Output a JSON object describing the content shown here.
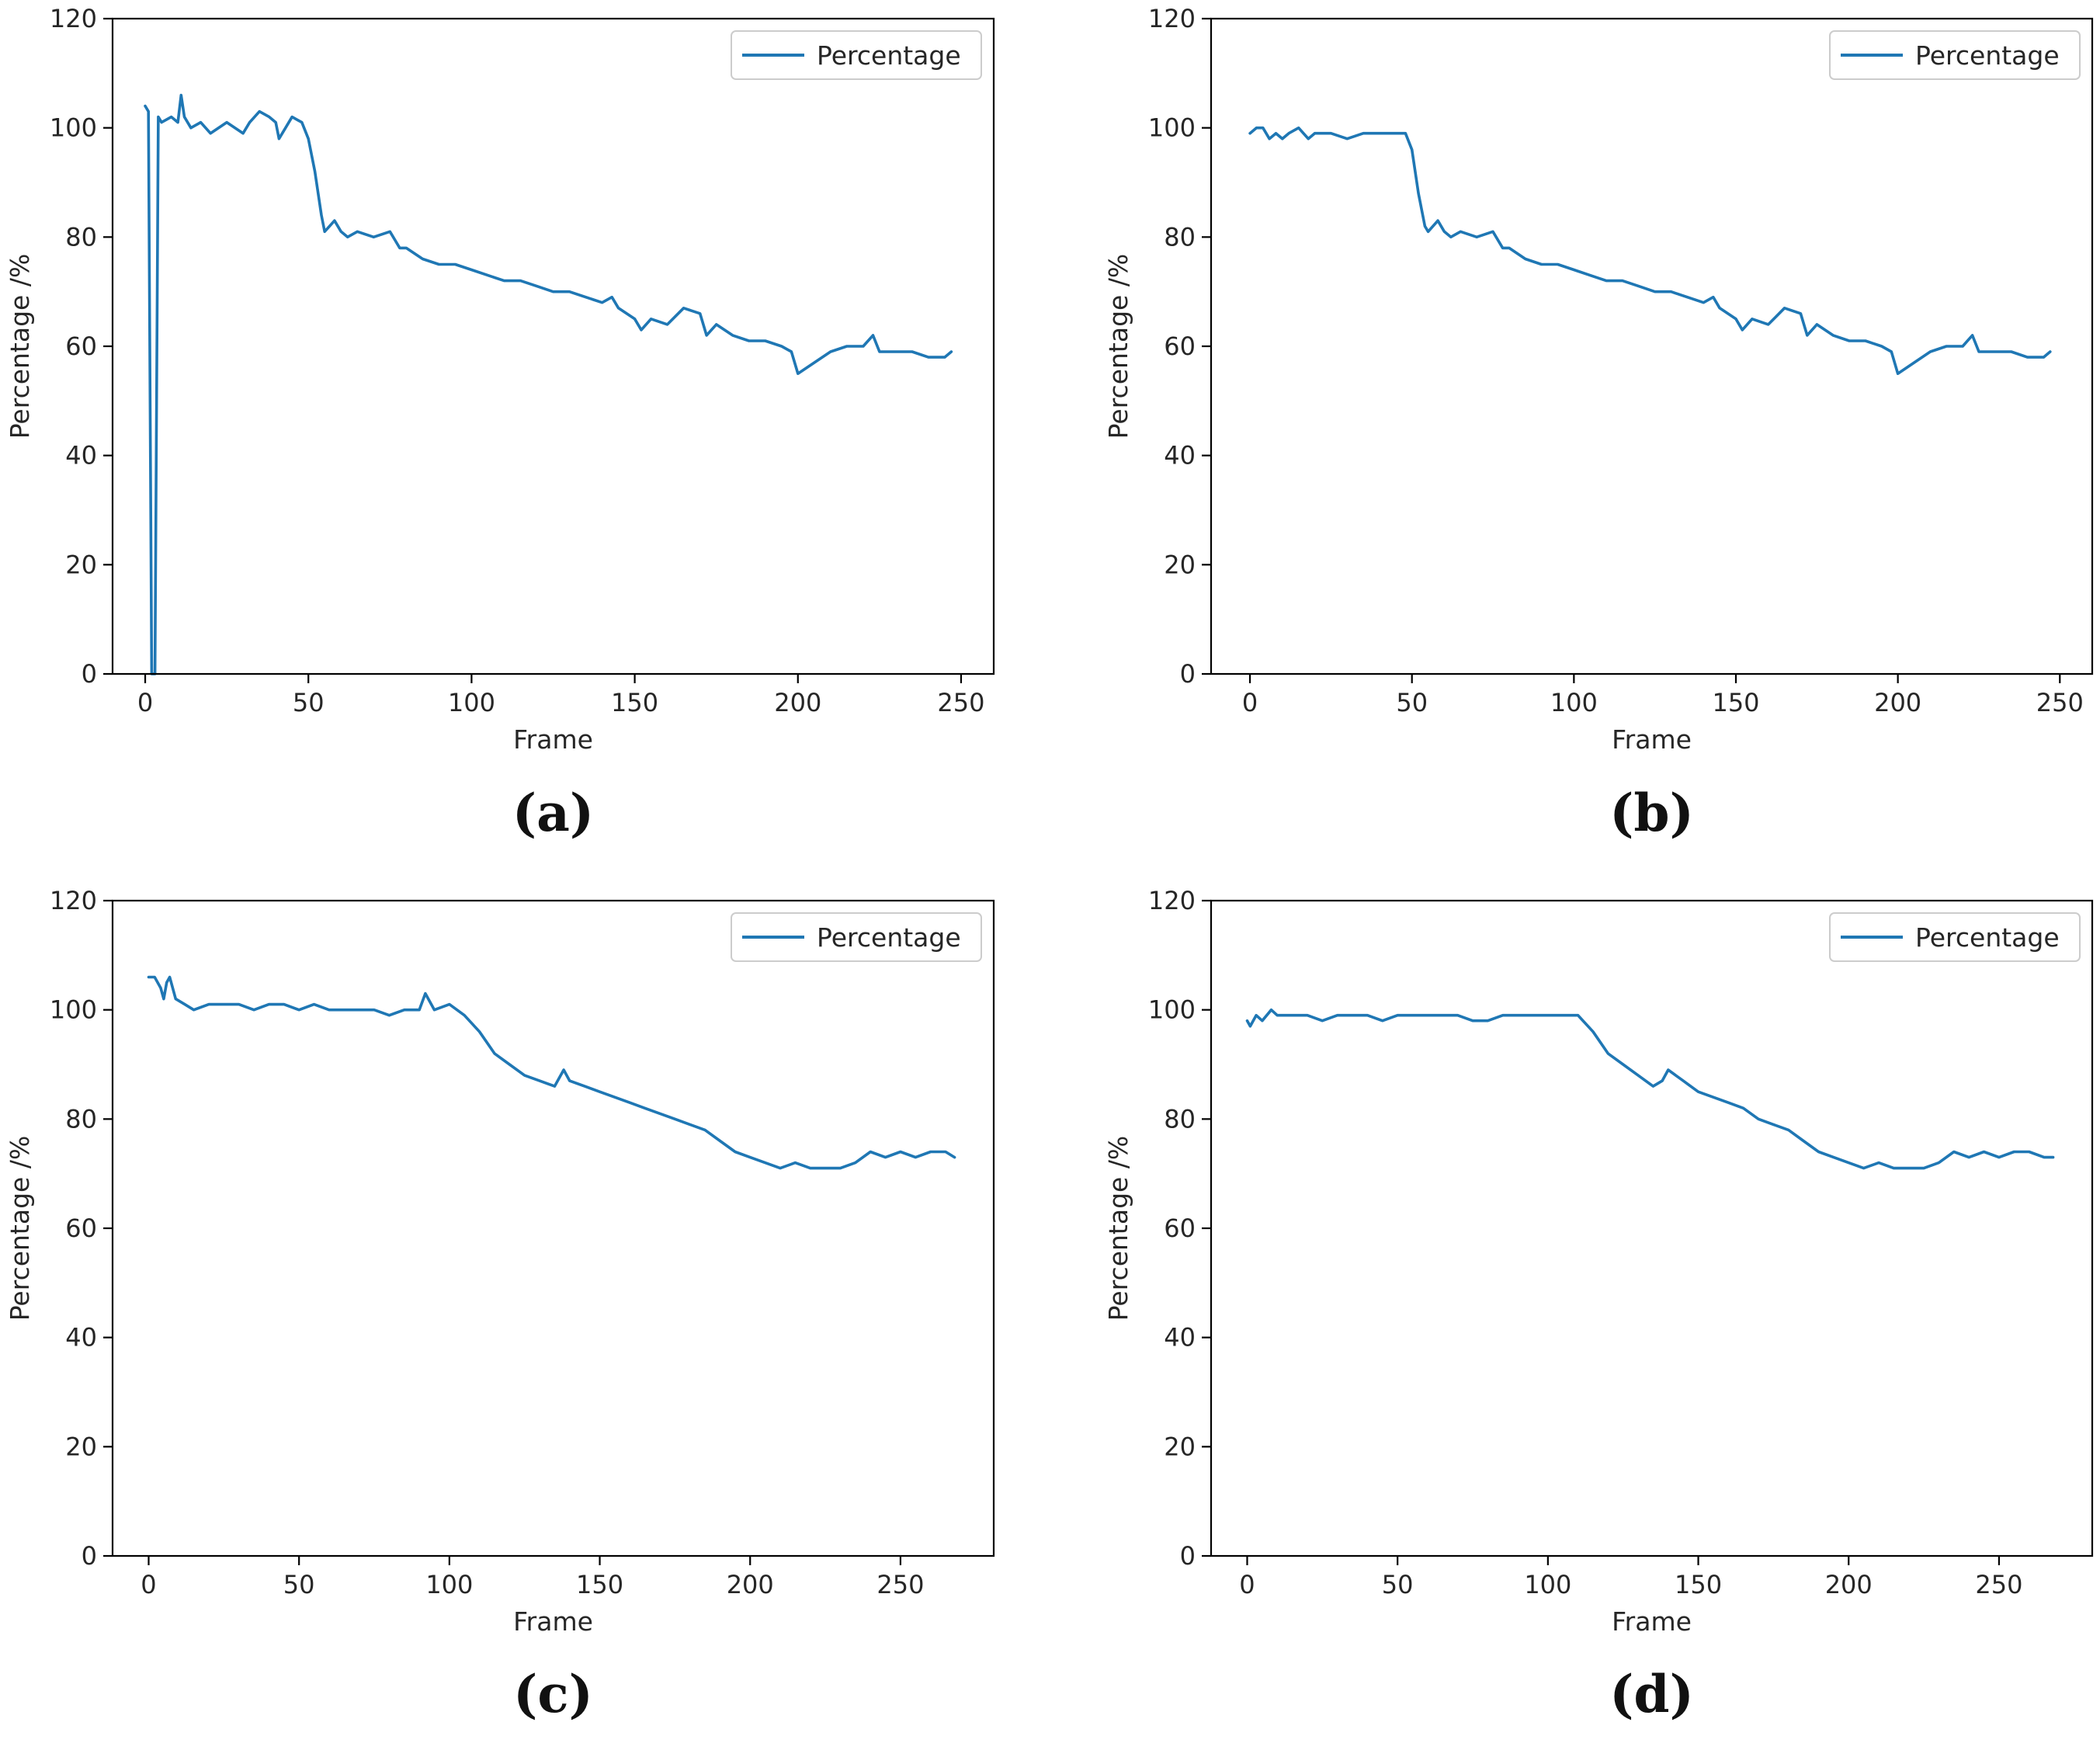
{
  "colors": {
    "series": "#1f77b4",
    "axis": "#000000",
    "text": "#262626"
  },
  "chart_data": [
    {
      "panel": "(a)",
      "type": "line",
      "xlabel": "Frame",
      "ylabel": "Percentage /%",
      "xlim": [
        -10,
        260
      ],
      "ylim": [
        0,
        120
      ],
      "xticks": [
        "0",
        "50",
        "100",
        "150",
        "200",
        "250"
      ],
      "xtick_values": [
        0,
        50,
        100,
        150,
        200,
        250
      ],
      "yticks": [
        "0",
        "20",
        "40",
        "60",
        "80",
        "100",
        "120"
      ],
      "ytick_values": [
        0,
        20,
        40,
        60,
        80,
        100,
        120
      ],
      "legend": {
        "label": "Percentage",
        "position": "upper right"
      },
      "series": [
        {
          "name": "Percentage",
          "x": [
            0,
            1,
            2,
            3,
            4,
            5,
            8,
            10,
            11,
            12,
            14,
            17,
            20,
            25,
            30,
            32,
            35,
            38,
            40,
            41,
            43,
            45,
            48,
            50,
            52,
            54,
            55,
            58,
            60,
            62,
            65,
            70,
            75,
            78,
            80,
            85,
            90,
            95,
            100,
            105,
            110,
            115,
            120,
            125,
            130,
            135,
            140,
            143,
            145,
            150,
            152,
            155,
            160,
            165,
            170,
            172,
            175,
            180,
            185,
            190,
            195,
            198,
            200,
            205,
            210,
            215,
            220,
            223,
            225,
            230,
            235,
            240,
            245,
            247
          ],
          "y": [
            104,
            103,
            0,
            0,
            102,
            101,
            102,
            101,
            106,
            102,
            100,
            101,
            99,
            101,
            99,
            101,
            103,
            102,
            101,
            98,
            100,
            102,
            101,
            98,
            92,
            84,
            81,
            83,
            81,
            80,
            81,
            80,
            81,
            78,
            78,
            76,
            75,
            75,
            74,
            73,
            72,
            72,
            71,
            70,
            70,
            69,
            68,
            69,
            67,
            65,
            63,
            65,
            64,
            67,
            66,
            62,
            64,
            62,
            61,
            61,
            60,
            59,
            55,
            57,
            59,
            60,
            60,
            62,
            59,
            59,
            59,
            58,
            58,
            59
          ]
        }
      ]
    },
    {
      "panel": "(b)",
      "type": "line",
      "xlabel": "Frame",
      "ylabel": "Percentage /%",
      "xlim": [
        -12,
        260
      ],
      "ylim": [
        0,
        120
      ],
      "xticks": [
        "0",
        "50",
        "100",
        "150",
        "200",
        "250"
      ],
      "xtick_values": [
        0,
        50,
        100,
        150,
        200,
        250
      ],
      "yticks": [
        "0",
        "20",
        "40",
        "60",
        "80",
        "100",
        "120"
      ],
      "ytick_values": [
        0,
        20,
        40,
        60,
        80,
        100,
        120
      ],
      "legend": {
        "label": "Percentage",
        "position": "upper right"
      },
      "series": [
        {
          "name": "Percentage",
          "x": [
            0,
            2,
            4,
            6,
            8,
            10,
            12,
            15,
            18,
            20,
            25,
            30,
            35,
            40,
            45,
            48,
            50,
            52,
            54,
            55,
            58,
            60,
            62,
            65,
            70,
            75,
            78,
            80,
            85,
            90,
            95,
            100,
            105,
            110,
            115,
            120,
            125,
            130,
            135,
            140,
            143,
            145,
            150,
            152,
            155,
            160,
            165,
            170,
            172,
            175,
            180,
            185,
            190,
            195,
            198,
            200,
            205,
            210,
            215,
            220,
            223,
            225,
            230,
            235,
            240,
            245,
            247
          ],
          "y": [
            99,
            100,
            100,
            98,
            99,
            98,
            99,
            100,
            98,
            99,
            99,
            98,
            99,
            99,
            99,
            99,
            96,
            88,
            82,
            81,
            83,
            81,
            80,
            81,
            80,
            81,
            78,
            78,
            76,
            75,
            75,
            74,
            73,
            72,
            72,
            71,
            70,
            70,
            69,
            68,
            69,
            67,
            65,
            63,
            65,
            64,
            67,
            66,
            62,
            64,
            62,
            61,
            61,
            60,
            59,
            55,
            57,
            59,
            60,
            60,
            62,
            59,
            59,
            59,
            58,
            58,
            59
          ]
        }
      ]
    },
    {
      "panel": "(c)",
      "type": "line",
      "xlabel": "Frame",
      "ylabel": "Percentage /%",
      "xlim": [
        -12,
        281
      ],
      "ylim": [
        0,
        120
      ],
      "xticks": [
        "0",
        "50",
        "100",
        "150",
        "200",
        "250"
      ],
      "xtick_values": [
        0,
        50,
        100,
        150,
        200,
        250
      ],
      "yticks": [
        "0",
        "20",
        "40",
        "60",
        "80",
        "100",
        "120"
      ],
      "ytick_values": [
        0,
        20,
        40,
        60,
        80,
        100,
        120
      ],
      "legend": {
        "label": "Percentage",
        "position": "upper right"
      },
      "series": [
        {
          "name": "Percentage",
          "x": [
            0,
            2,
            4,
            5,
            6,
            7,
            9,
            12,
            15,
            20,
            25,
            30,
            35,
            40,
            45,
            50,
            55,
            60,
            65,
            70,
            75,
            80,
            85,
            90,
            92,
            95,
            100,
            105,
            110,
            115,
            120,
            125,
            130,
            135,
            138,
            140,
            145,
            150,
            155,
            160,
            165,
            170,
            175,
            180,
            185,
            190,
            195,
            200,
            205,
            210,
            215,
            220,
            225,
            230,
            235,
            240,
            245,
            250,
            255,
            260,
            265,
            268
          ],
          "y": [
            106,
            106,
            104,
            102,
            105,
            106,
            102,
            101,
            100,
            101,
            101,
            101,
            100,
            101,
            101,
            100,
            101,
            100,
            100,
            100,
            100,
            99,
            100,
            100,
            103,
            100,
            101,
            99,
            96,
            92,
            90,
            88,
            87,
            86,
            89,
            87,
            86,
            85,
            84,
            83,
            82,
            81,
            80,
            79,
            78,
            76,
            74,
            73,
            72,
            71,
            72,
            71,
            71,
            71,
            72,
            74,
            73,
            74,
            73,
            74,
            74,
            73
          ]
        }
      ]
    },
    {
      "panel": "(d)",
      "type": "line",
      "xlabel": "Frame",
      "ylabel": "Percentage /%",
      "xlim": [
        -12,
        281
      ],
      "ylim": [
        0,
        120
      ],
      "xticks": [
        "0",
        "50",
        "100",
        "150",
        "200",
        "250"
      ],
      "xtick_values": [
        0,
        50,
        100,
        150,
        200,
        250
      ],
      "yticks": [
        "0",
        "20",
        "40",
        "60",
        "80",
        "100",
        "120"
      ],
      "ytick_values": [
        0,
        20,
        40,
        60,
        80,
        100,
        120
      ],
      "legend": {
        "label": "Percentage",
        "position": "upper right"
      },
      "series": [
        {
          "name": "Percentage",
          "x": [
            0,
            1,
            3,
            5,
            8,
            10,
            15,
            20,
            25,
            30,
            35,
            40,
            45,
            50,
            55,
            60,
            65,
            70,
            75,
            80,
            85,
            90,
            95,
            100,
            105,
            110,
            115,
            120,
            125,
            130,
            135,
            138,
            140,
            145,
            150,
            155,
            160,
            165,
            170,
            175,
            180,
            185,
            190,
            195,
            200,
            205,
            210,
            215,
            220,
            225,
            230,
            235,
            240,
            245,
            250,
            255,
            260,
            265,
            268
          ],
          "y": [
            98,
            97,
            99,
            98,
            100,
            99,
            99,
            99,
            98,
            99,
            99,
            99,
            98,
            99,
            99,
            99,
            99,
            99,
            98,
            98,
            99,
            99,
            99,
            99,
            99,
            99,
            96,
            92,
            90,
            88,
            86,
            87,
            89,
            87,
            85,
            84,
            83,
            82,
            80,
            79,
            78,
            76,
            74,
            73,
            72,
            71,
            72,
            71,
            71,
            71,
            72,
            74,
            73,
            74,
            73,
            74,
            74,
            73,
            73
          ]
        }
      ]
    }
  ]
}
